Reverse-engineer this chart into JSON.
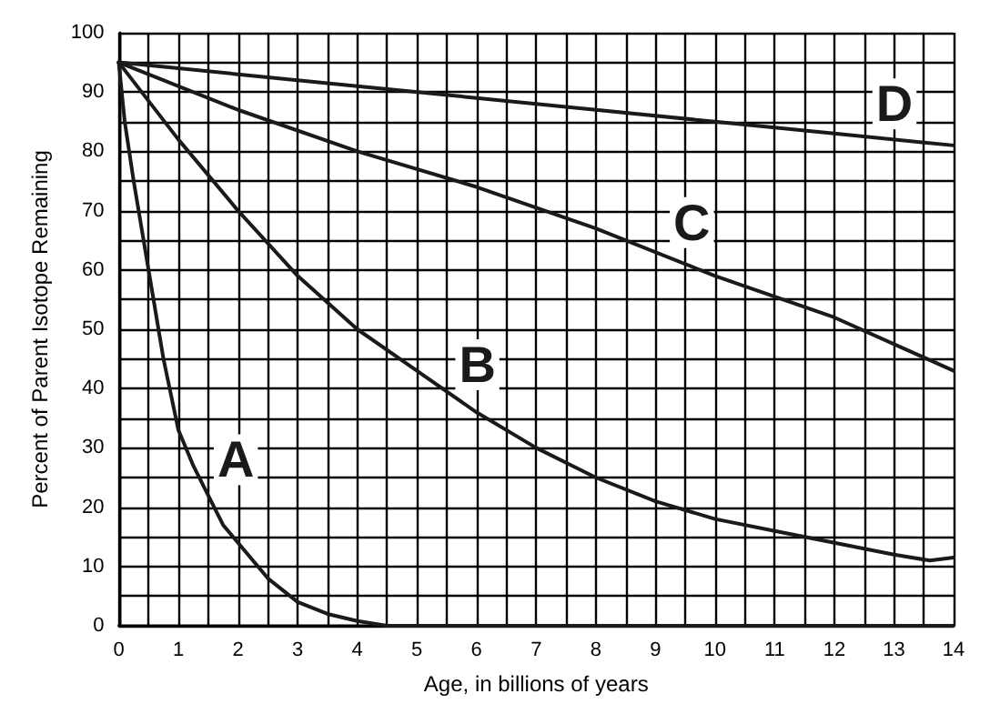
{
  "chart_data": {
    "type": "line",
    "xlabel": "Age, in billions of years",
    "ylabel": "Percent of Parent Isotope Remaining",
    "xlim": [
      0,
      14
    ],
    "ylim": [
      0,
      100
    ],
    "xticks": [
      0,
      {
        "value": 0.5,
        "label": null
      },
      1,
      {
        "value": 1.5,
        "label": null
      },
      2,
      {
        "value": 2.5,
        "label": null
      },
      3,
      {
        "value": 3.5,
        "label": null
      },
      4,
      {
        "value": 4.5,
        "label": null
      },
      5,
      {
        "value": 5.5,
        "label": null
      },
      6,
      {
        "value": 6.5,
        "label": null
      },
      7,
      {
        "value": 7.5,
        "label": null
      },
      8,
      {
        "value": 8.5,
        "label": null
      },
      9,
      {
        "value": 9.5,
        "label": null
      },
      10,
      {
        "value": 10.5,
        "label": null
      },
      11,
      {
        "value": 11.5,
        "label": null
      },
      12,
      {
        "value": 12.5,
        "label": null
      },
      13,
      {
        "value": 13.5,
        "label": null
      },
      14
    ],
    "yticks": [
      0,
      {
        "value": 5,
        "label": null
      },
      10,
      {
        "value": 15,
        "label": null
      },
      20,
      {
        "value": 25,
        "label": null
      },
      30,
      {
        "value": 35,
        "label": null
      },
      40,
      {
        "value": 45,
        "label": null
      },
      50,
      {
        "value": 55,
        "label": null
      },
      60,
      {
        "value": 65,
        "label": null
      },
      70,
      {
        "value": 75,
        "label": null
      },
      80,
      {
        "value": 85,
        "label": null
      },
      90,
      {
        "value": 95,
        "label": null
      },
      100
    ],
    "grid": true,
    "marker": "none",
    "line_style": "solid",
    "series": [
      {
        "name": "A",
        "color": "#1a1a1a",
        "x": [
          0,
          0.1,
          0.25,
          0.5,
          0.75,
          1,
          1.25,
          1.5,
          1.75,
          2,
          2.5,
          3,
          3.5,
          4,
          4.5,
          5,
          14
        ],
        "values": [
          95,
          85,
          75,
          60,
          45,
          33,
          27,
          22,
          17,
          14,
          8,
          4,
          2,
          0.8,
          0,
          0,
          0
        ]
      },
      {
        "name": "B",
        "color": "#1a1a1a",
        "x": [
          0,
          1,
          2,
          3,
          4,
          5,
          6,
          7,
          8,
          9,
          10,
          11,
          12,
          13,
          13.6,
          14
        ],
        "values": [
          95,
          82,
          70,
          59,
          50,
          43,
          36,
          30,
          25,
          21,
          18,
          16,
          14,
          12,
          11,
          11.5
        ]
      },
      {
        "name": "C",
        "color": "#1a1a1a",
        "x": [
          0,
          2,
          4,
          6,
          8,
          10,
          12,
          14
        ],
        "values": [
          95,
          87,
          80,
          74,
          67,
          59,
          52,
          43
        ]
      },
      {
        "name": "D",
        "color": "#1a1a1a",
        "x": [
          0,
          2,
          4,
          6,
          8,
          10,
          12,
          14
        ],
        "values": [
          95,
          93,
          91,
          89,
          87,
          85,
          83,
          81
        ]
      }
    ]
  }
}
